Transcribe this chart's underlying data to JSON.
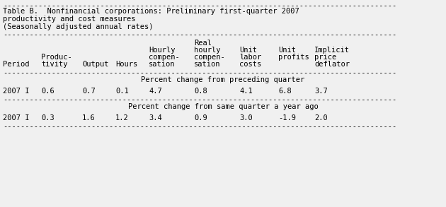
{
  "title_line1": "Table B.  Nonfinancial corporations: Preliminary first-quarter 2007",
  "title_line2": "productivity and cost measures",
  "title_line3": "(Seasonally adjusted annual rates)",
  "section1_label": "Percent change from preceding quarter",
  "section1_period": "2007 I",
  "section1_values": [
    "0.6",
    "0.7",
    "0.1",
    "4.7",
    "0.8",
    "4.1",
    "6.8",
    "3.7"
  ],
  "section2_label": "Percent change from same quarter a year ago",
  "section2_period": "2007 I",
  "section2_values": [
    "0.3",
    "1.6",
    "1.2",
    "3.4",
    "0.9",
    "3.0",
    "-1.9",
    "2.0"
  ],
  "font_family": "monospace",
  "font_size": 7.5,
  "bg_color": "#f0f0f0",
  "text_color": "#000000",
  "dash_line": "-----------------------------------------------------------------------------------------"
}
